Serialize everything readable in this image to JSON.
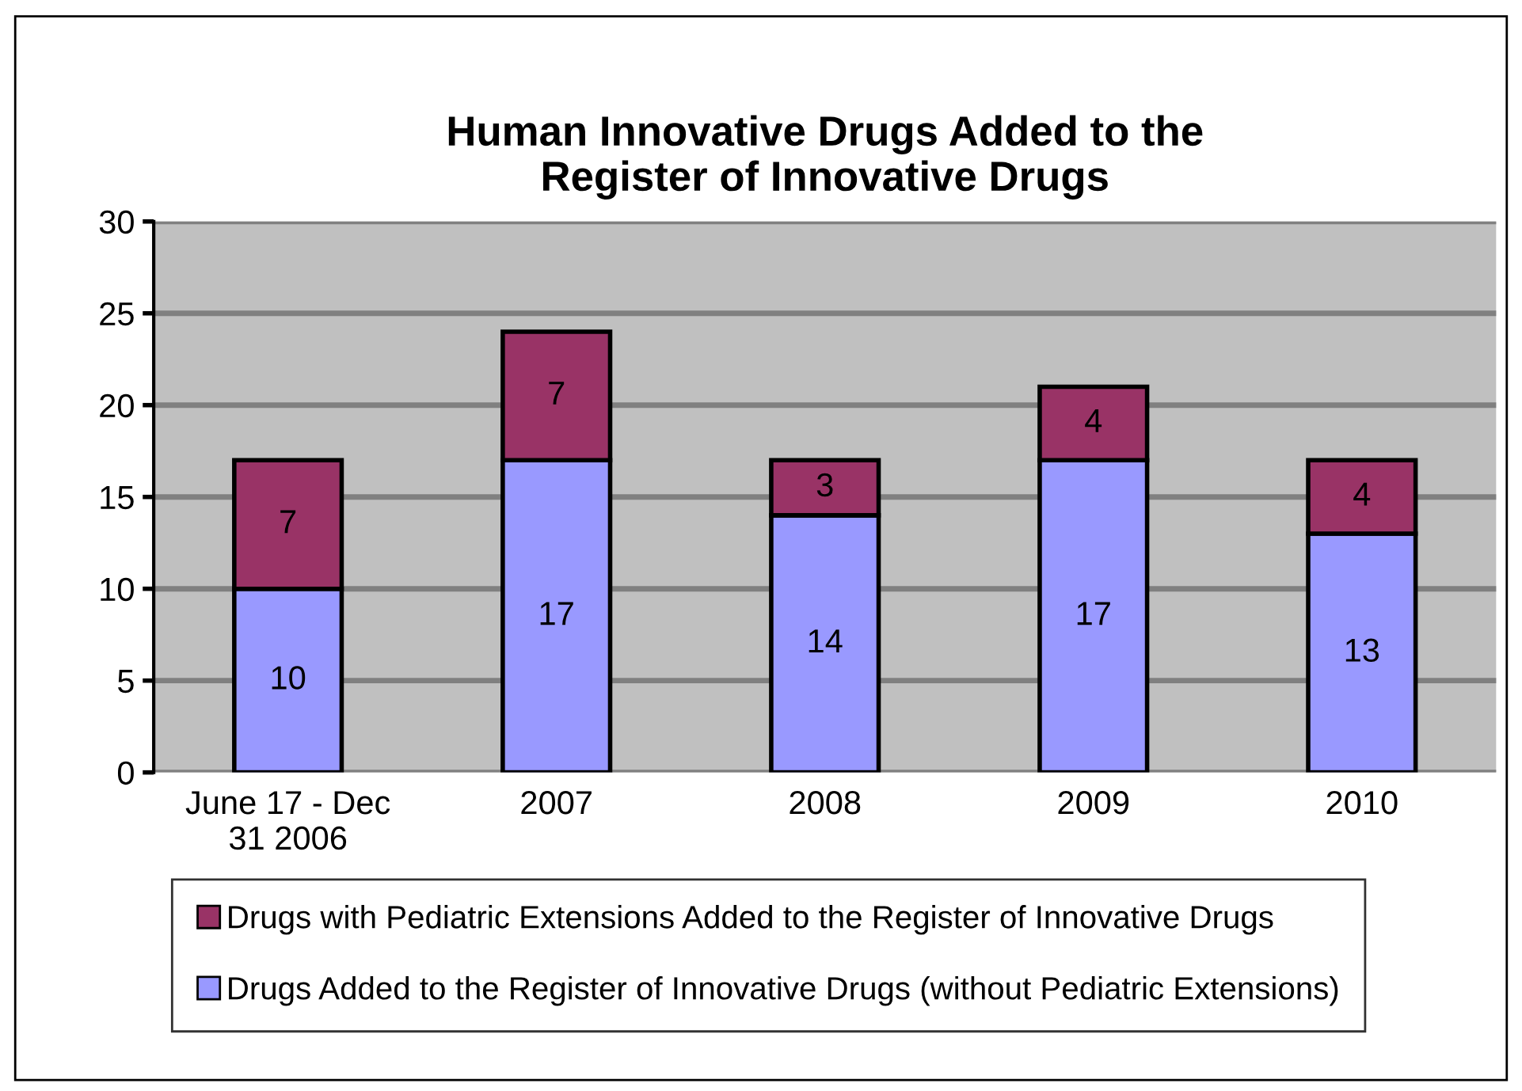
{
  "chart_data": {
    "type": "bar",
    "title": "Human Innovative Drugs Added to the\nRegister of Innovative Drugs",
    "categories": [
      "June 17 - Dec\n31 2006",
      "2007",
      "2008",
      "2009",
      "2010"
    ],
    "stacked": true,
    "series": [
      {
        "name": "Drugs Added to the Register of Innovative Drugs (without Pediatric Extensions)",
        "color": "#9999ff",
        "values": [
          10,
          17,
          14,
          17,
          13
        ]
      },
      {
        "name": "Drugs with Pediatric Extensions Added to the Register of Innovative Drugs",
        "color": "#993366",
        "values": [
          7,
          7,
          3,
          4,
          4
        ]
      }
    ],
    "ylim": [
      0,
      30
    ],
    "yticks": [
      0,
      5,
      10,
      15,
      20,
      25,
      30
    ],
    "grid": "y",
    "legend": "bottom",
    "data_labels": true
  }
}
